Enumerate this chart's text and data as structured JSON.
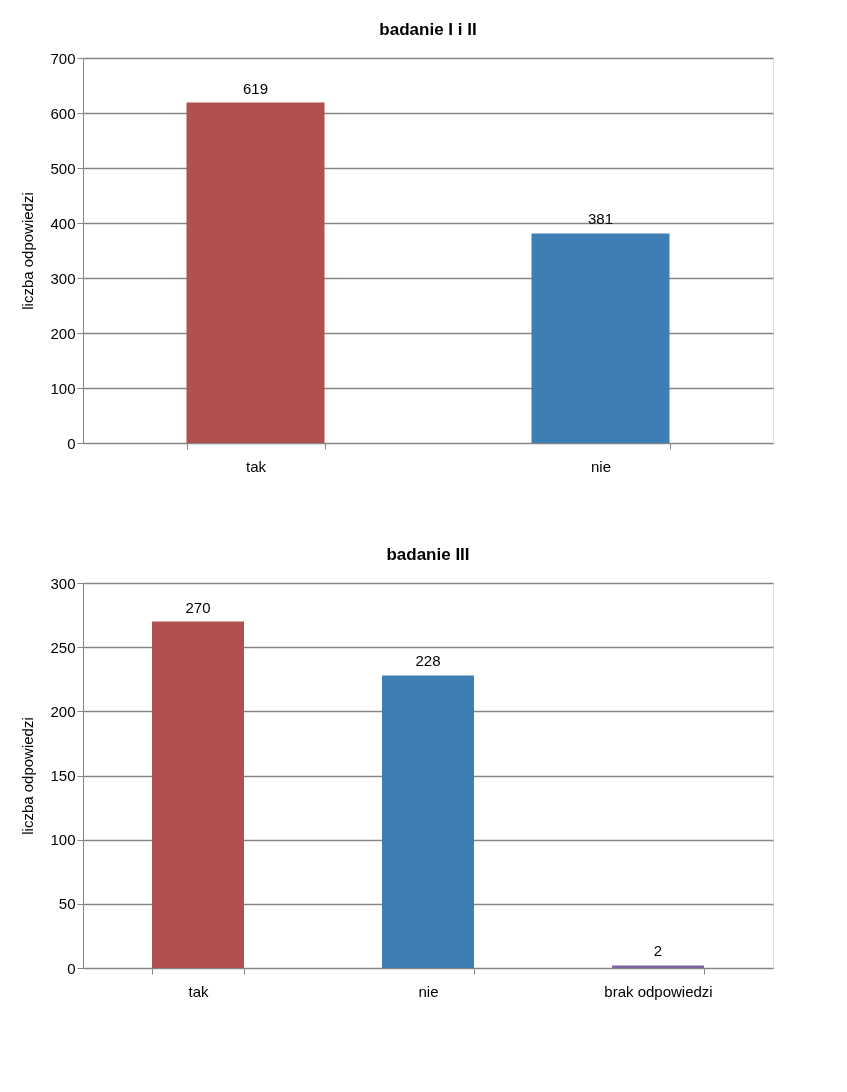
{
  "chart_data": [
    {
      "type": "bar",
      "title": "badanie I i II",
      "ylabel": "liczba odpowiedzi",
      "categories": [
        "tak",
        "nie"
      ],
      "values": [
        619,
        381
      ],
      "colors": [
        "#b0504f",
        "#3d7fb5"
      ],
      "ylim": [
        0,
        700
      ],
      "yticks": [
        0,
        100,
        200,
        300,
        400,
        500,
        600,
        700
      ],
      "grid": "y",
      "data_labels": true,
      "legend": false
    },
    {
      "type": "bar",
      "title": "badanie III",
      "ylabel": "liczba odpowiedzi",
      "categories": [
        "tak",
        "nie",
        "brak odpowiedzi"
      ],
      "values": [
        270,
        228,
        2
      ],
      "colors": [
        "#b0504f",
        "#3d7fb5",
        "#7d64a0"
      ],
      "ylim": [
        0,
        300
      ],
      "yticks": [
        0,
        50,
        100,
        150,
        200,
        250,
        300
      ],
      "grid": "y",
      "data_labels": true,
      "legend": false
    }
  ]
}
